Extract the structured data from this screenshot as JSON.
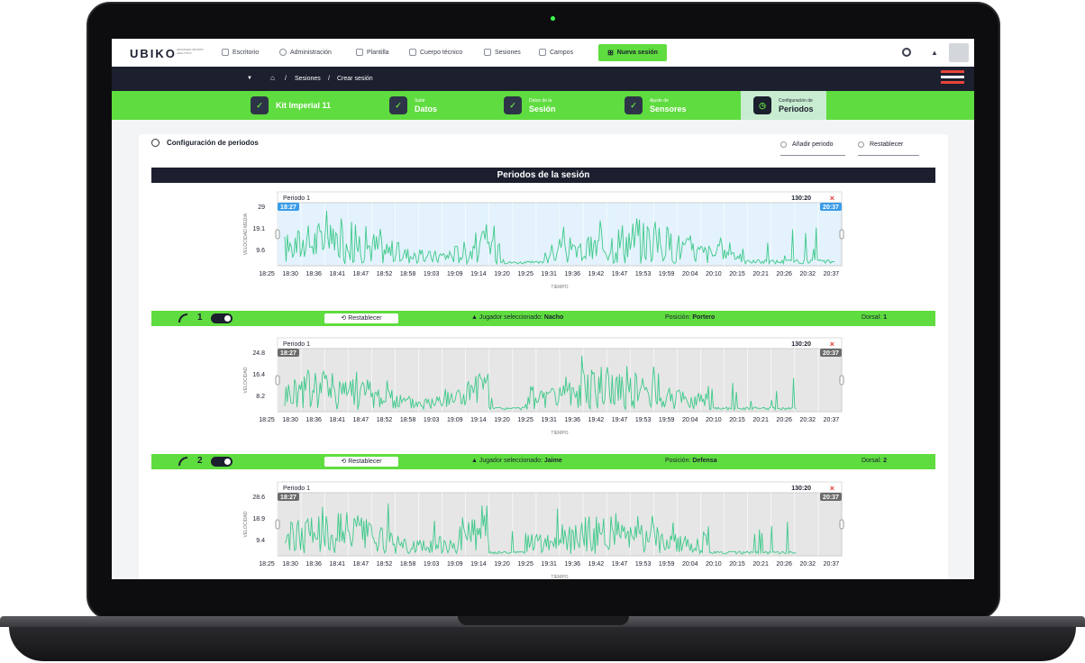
{
  "app": {
    "logo": "UBIKO",
    "logo_sub": "ADVANCED SPORTS ANALYTICS"
  },
  "nav": {
    "items": [
      {
        "label": "Escritorio"
      },
      {
        "label": "Administración"
      },
      {
        "label": "Plantilla"
      },
      {
        "label": "Cuerpo técnico"
      },
      {
        "label": "Sesiones"
      },
      {
        "label": "Campos"
      }
    ],
    "new_session": "Nueva sesión"
  },
  "breadcrumb": {
    "sep": "/",
    "items": [
      "Sesiones",
      "Crear sesión"
    ]
  },
  "steps": [
    {
      "sub": "",
      "label": "Kit Imperial 11"
    },
    {
      "sub": "Subir",
      "label": "Datos"
    },
    {
      "sub": "Datos de la",
      "label": "Sesión"
    },
    {
      "sub": "Ajuste de",
      "label": "Sensores"
    },
    {
      "sub": "Configuración de",
      "label": "Periodos"
    }
  ],
  "panel": {
    "title": "Configuración de periodos",
    "add_period": "Añadir periodo",
    "reset_all": "Restablecer",
    "section_title": "Periodos de la sesión"
  },
  "x_ticks": [
    "18:25",
    "18:30",
    "18:36",
    "18:41",
    "18:47",
    "18:52",
    "18:58",
    "19:03",
    "19:09",
    "19:14",
    "19:20",
    "19:25",
    "19:31",
    "19:36",
    "19:42",
    "19:47",
    "19:53",
    "19:59",
    "20:04",
    "20:10",
    "20:15",
    "20:21",
    "20:26",
    "20:32",
    "20:37"
  ],
  "chart_data": [
    {
      "type": "line",
      "title": "Periodo 1",
      "duration": "130:20",
      "start_marker": "18:27",
      "end_marker": "20:37",
      "xlabel": "TIEMPO",
      "ylabel": "VELOCIDAD MEDIA",
      "yticks": [
        "29",
        "19.1",
        "9.6"
      ],
      "ylim": [
        0,
        29
      ],
      "colors": {
        "line": "#3ec98a",
        "fill": "#e3f2fc",
        "marker": "#3a9ce8"
      },
      "activity": "session-average"
    },
    {
      "type": "line",
      "title": "Periodo 1",
      "duration": "130:20",
      "start_marker": "18:27",
      "end_marker": "20:37",
      "xlabel": "TIEMPO",
      "ylabel": "VELOCIDAD",
      "yticks": [
        "24.8",
        "16.4",
        "8.2"
      ],
      "ylim": [
        0,
        24.8
      ],
      "colors": {
        "line": "#3ec98a",
        "fill": "#e6e6e6",
        "marker": "#6b6b6b"
      },
      "activity": "player-1"
    },
    {
      "type": "line",
      "title": "Periodo 1",
      "duration": "130:20",
      "start_marker": "18:27",
      "end_marker": "20:37",
      "xlabel": "TIEMPO",
      "ylabel": "VELOCIDAD",
      "yticks": [
        "28.6",
        "18.9",
        "9.4"
      ],
      "ylim": [
        0,
        28.6
      ],
      "colors": {
        "line": "#3ec98a",
        "fill": "#e6e6e6",
        "marker": "#6b6b6b"
      },
      "activity": "player-2"
    }
  ],
  "players": [
    {
      "num": "1",
      "reset": "Restablecer",
      "sel_label": "Jugador seleccionado:",
      "sel": "Nacho",
      "pos_label": "Posición:",
      "pos": "Portero",
      "dorsal_label": "Dorsal:",
      "dorsal": "1"
    },
    {
      "num": "2",
      "reset": "Restablecer",
      "sel_label": "Jugador seleccionado:",
      "sel": "Jaime",
      "pos_label": "Posición:",
      "pos": "Defensa",
      "dorsal_label": "Dorsal:",
      "dorsal": "2"
    }
  ]
}
